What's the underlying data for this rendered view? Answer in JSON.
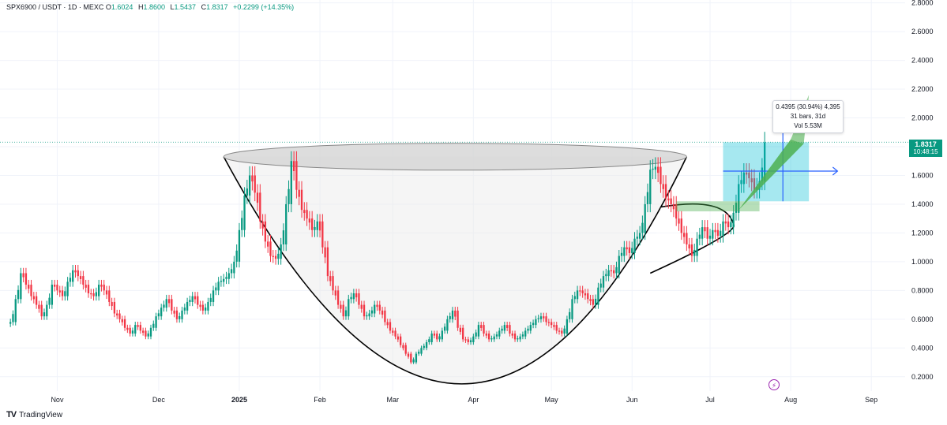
{
  "legend": {
    "symbol": "SPX6900 / USDT · 1D · MEXC",
    "open_label": "O",
    "open": "1.6024",
    "high_label": "H",
    "high": "1.8600",
    "low_label": "L",
    "low": "1.5437",
    "close_label": "C",
    "close": "1.8317",
    "change": "+0.2299 (+14.35%)"
  },
  "price_tag": {
    "price": "1.8317",
    "countdown": "10:48:15"
  },
  "measure": {
    "line1": "0.4395 (30.94%) 4,395",
    "line2": "31 bars, 31d",
    "line3": "Vol 5.53M"
  },
  "brand": {
    "logo": "TV",
    "name": "TradingView"
  },
  "colors": {
    "up": "#089981",
    "down": "#f23645",
    "accent": "#2962ff"
  },
  "chart_data": {
    "type": "candlestick",
    "y_axis": {
      "ticks": [
        "2.8000",
        "2.6000",
        "2.4000",
        "2.2000",
        "2.0000",
        "1.8000",
        "1.6000",
        "1.4000",
        "1.2000",
        "1.0000",
        "0.8000",
        "0.6000",
        "0.4000",
        "0.2000"
      ],
      "range": [
        0.1,
        2.82
      ],
      "scale": "linear",
      "position": "right"
    },
    "x_axis": {
      "ticks": [
        {
          "label": "Nov",
          "day": -70
        },
        {
          "label": "Dec",
          "day": -31
        },
        {
          "label": "2025",
          "day": 0,
          "bold": true
        },
        {
          "label": "Feb",
          "day": 31
        },
        {
          "label": "Mar",
          "day": 59
        },
        {
          "label": "Apr",
          "day": 90
        },
        {
          "label": "May",
          "day": 120
        },
        {
          "label": "Jun",
          "day": 151
        },
        {
          "label": "Jul",
          "day": 181
        },
        {
          "label": "Aug",
          "day": 212
        },
        {
          "label": "Sep",
          "day": 243
        }
      ],
      "range": [
        -92,
        256
      ]
    },
    "last_price": 1.8317,
    "series_close": [
      [
        -88,
        0.58
      ],
      [
        -86,
        0.74
      ],
      [
        -84,
        0.92
      ],
      [
        -82,
        0.84
      ],
      [
        -80,
        0.76
      ],
      [
        -78,
        0.7
      ],
      [
        -76,
        0.62
      ],
      [
        -74,
        0.7
      ],
      [
        -72,
        0.84
      ],
      [
        -70,
        0.8
      ],
      [
        -68,
        0.76
      ],
      [
        -66,
        0.86
      ],
      [
        -64,
        0.94
      ],
      [
        -62,
        0.9
      ],
      [
        -60,
        0.84
      ],
      [
        -58,
        0.78
      ],
      [
        -56,
        0.76
      ],
      [
        -54,
        0.84
      ],
      [
        -52,
        0.8
      ],
      [
        -50,
        0.72
      ],
      [
        -48,
        0.64
      ],
      [
        -46,
        0.6
      ],
      [
        -44,
        0.54
      ],
      [
        -42,
        0.5
      ],
      [
        -40,
        0.56
      ],
      [
        -38,
        0.52
      ],
      [
        -36,
        0.48
      ],
      [
        -34,
        0.54
      ],
      [
        -32,
        0.62
      ],
      [
        -30,
        0.68
      ],
      [
        -28,
        0.74
      ],
      [
        -26,
        0.66
      ],
      [
        -24,
        0.6
      ],
      [
        -22,
        0.66
      ],
      [
        -20,
        0.72
      ],
      [
        -18,
        0.76
      ],
      [
        -16,
        0.7
      ],
      [
        -14,
        0.66
      ],
      [
        -12,
        0.72
      ],
      [
        -10,
        0.8
      ],
      [
        -8,
        0.86
      ],
      [
        -6,
        0.88
      ],
      [
        -4,
        0.92
      ],
      [
        -2,
        1.0
      ],
      [
        0,
        1.22
      ],
      [
        2,
        1.46
      ],
      [
        4,
        1.6
      ],
      [
        6,
        1.48
      ],
      [
        8,
        1.28
      ],
      [
        10,
        1.14
      ],
      [
        12,
        1.04
      ],
      [
        14,
        1.02
      ],
      [
        16,
        1.12
      ],
      [
        18,
        1.4
      ],
      [
        20,
        1.7
      ],
      [
        22,
        1.5
      ],
      [
        24,
        1.36
      ],
      [
        26,
        1.3
      ],
      [
        28,
        1.22
      ],
      [
        30,
        1.28
      ],
      [
        32,
        1.1
      ],
      [
        34,
        0.9
      ],
      [
        36,
        0.8
      ],
      [
        38,
        0.7
      ],
      [
        40,
        0.62
      ],
      [
        42,
        0.74
      ],
      [
        44,
        0.78
      ],
      [
        46,
        0.7
      ],
      [
        48,
        0.62
      ],
      [
        50,
        0.64
      ],
      [
        52,
        0.7
      ],
      [
        54,
        0.66
      ],
      [
        56,
        0.58
      ],
      [
        58,
        0.52
      ],
      [
        60,
        0.48
      ],
      [
        62,
        0.42
      ],
      [
        64,
        0.36
      ],
      [
        66,
        0.3
      ],
      [
        68,
        0.36
      ],
      [
        70,
        0.4
      ],
      [
        72,
        0.44
      ],
      [
        74,
        0.5
      ],
      [
        76,
        0.46
      ],
      [
        78,
        0.52
      ],
      [
        80,
        0.6
      ],
      [
        82,
        0.66
      ],
      [
        84,
        0.54
      ],
      [
        86,
        0.46
      ],
      [
        88,
        0.44
      ],
      [
        90,
        0.48
      ],
      [
        92,
        0.56
      ],
      [
        94,
        0.5
      ],
      [
        96,
        0.46
      ],
      [
        98,
        0.48
      ],
      [
        100,
        0.52
      ],
      [
        102,
        0.56
      ],
      [
        104,
        0.5
      ],
      [
        106,
        0.46
      ],
      [
        108,
        0.48
      ],
      [
        110,
        0.52
      ],
      [
        112,
        0.56
      ],
      [
        114,
        0.6
      ],
      [
        116,
        0.62
      ],
      [
        118,
        0.58
      ],
      [
        120,
        0.56
      ],
      [
        122,
        0.52
      ],
      [
        124,
        0.5
      ],
      [
        126,
        0.6
      ],
      [
        128,
        0.74
      ],
      [
        130,
        0.8
      ],
      [
        132,
        0.78
      ],
      [
        134,
        0.74
      ],
      [
        136,
        0.7
      ],
      [
        138,
        0.82
      ],
      [
        140,
        0.9
      ],
      [
        142,
        0.94
      ],
      [
        144,
        0.92
      ],
      [
        146,
        1.04
      ],
      [
        148,
        1.1
      ],
      [
        150,
        1.06
      ],
      [
        152,
        1.16
      ],
      [
        154,
        1.2
      ],
      [
        156,
        1.4
      ],
      [
        158,
        1.64
      ],
      [
        160,
        1.66
      ],
      [
        162,
        1.54
      ],
      [
        164,
        1.44
      ],
      [
        166,
        1.4
      ],
      [
        168,
        1.3
      ],
      [
        170,
        1.2
      ],
      [
        172,
        1.12
      ],
      [
        174,
        1.04
      ],
      [
        176,
        1.16
      ],
      [
        178,
        1.24
      ],
      [
        180,
        1.16
      ],
      [
        182,
        1.22
      ],
      [
        184,
        1.18
      ],
      [
        186,
        1.28
      ],
      [
        188,
        1.24
      ],
      [
        190,
        1.34
      ],
      [
        192,
        1.54
      ],
      [
        194,
        1.62
      ],
      [
        196,
        1.58
      ],
      [
        198,
        1.5
      ],
      [
        200,
        1.56
      ],
      [
        202,
        1.83
      ]
    ]
  }
}
